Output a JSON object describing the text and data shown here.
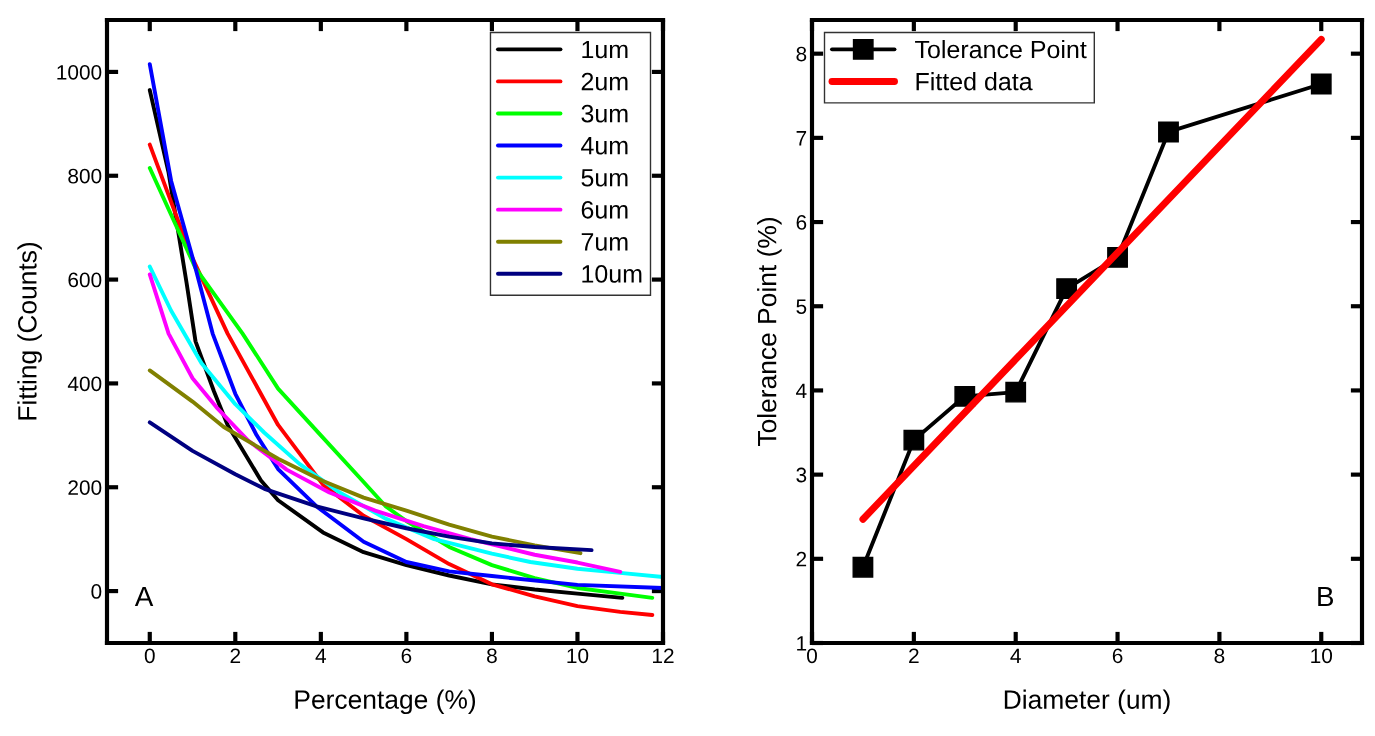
{
  "chart_data": [
    {
      "type": "line",
      "xlabel": "Percentage (%)",
      "ylabel": "Fitting (Counts)",
      "xlim": [
        -1,
        12
      ],
      "ylim": [
        -100,
        1100
      ],
      "xticks": [
        0,
        2,
        4,
        6,
        8,
        10,
        12
      ],
      "yticks": [
        0,
        200,
        400,
        600,
        800,
        1000
      ],
      "legend": "top right",
      "grid": false,
      "marker": "none",
      "line_style": "solid",
      "annotations": [
        "A"
      ],
      "series": [
        {
          "name": "1um",
          "color": "#000000",
          "x": [
            0,
            0.44,
            0.86,
            1.07,
            1.5,
            1.82,
            2.6,
            3,
            4.05,
            5,
            6,
            7,
            8,
            9,
            10,
            11.05
          ],
          "values": [
            965,
            806,
            594,
            481,
            385,
            320,
            213,
            175,
            113,
            75,
            50,
            30,
            13,
            3,
            -5,
            -13
          ]
        },
        {
          "name": "2um",
          "color": "#ff0000",
          "x": [
            0,
            0.95,
            1.82,
            3,
            4.05,
            5,
            6,
            7,
            8,
            9,
            10,
            11,
            11.75
          ],
          "values": [
            860,
            650,
            496,
            320,
            205,
            145,
            100,
            52,
            13,
            -10,
            -29,
            -40,
            -46
          ]
        },
        {
          "name": "3um",
          "color": "#00ff00",
          "x": [
            0,
            1.07,
            2.17,
            3,
            4,
            5,
            5.52,
            6,
            7,
            8,
            9,
            10,
            11,
            11.75
          ],
          "values": [
            815,
            622,
            496,
            390,
            300,
            210,
            163,
            135,
            85,
            50,
            25,
            6,
            -5,
            -13
          ]
        },
        {
          "name": "4um",
          "color": "#0000ff",
          "x": [
            0,
            0.5,
            1.07,
            1.47,
            2,
            2.5,
            3,
            3.9,
            5,
            6,
            7,
            8,
            10,
            12
          ],
          "values": [
            1015,
            790,
            622,
            496,
            380,
            300,
            235,
            163,
            95,
            56,
            38,
            29,
            12,
            6
          ]
        },
        {
          "name": "5um",
          "color": "#00ffff",
          "x": [
            0,
            0.5,
            1.21,
            2,
            2.68,
            3.5,
            4.4,
            5.5,
            6.65,
            8,
            8.9,
            10,
            11,
            12
          ],
          "values": [
            625,
            540,
            439,
            360,
            305,
            245,
            192,
            140,
            100,
            72,
            56,
            43,
            35,
            27
          ]
        },
        {
          "name": "6um",
          "color": "#ff00ff",
          "x": [
            0,
            0.44,
            1,
            1.56,
            2.3,
            3.2,
            4.2,
            5.27,
            6.4,
            7.5,
            9,
            10,
            11
          ],
          "values": [
            610,
            496,
            410,
            354,
            290,
            234,
            190,
            155,
            125,
            100,
            70,
            55,
            37
          ]
        },
        {
          "name": "7um",
          "color": "#808000",
          "x": [
            0,
            1,
            1.73,
            3,
            4.05,
            5,
            6,
            7,
            8,
            9,
            10.07
          ],
          "values": [
            425,
            365,
            316,
            255,
            212,
            180,
            155,
            128,
            105,
            88,
            73
          ]
        },
        {
          "name": "10um",
          "color": "#000080",
          "x": [
            0,
            1,
            2,
            2.68,
            3.9,
            5,
            6,
            7,
            8,
            9,
            10.33
          ],
          "values": [
            325,
            270,
            225,
            197,
            163,
            140,
            121,
            105,
            92,
            85,
            79
          ]
        }
      ]
    },
    {
      "type": "line",
      "xlabel": "Diameter (um)",
      "ylabel": "Tolerance Point (%)",
      "xlim": [
        0,
        10.8
      ],
      "ylim": [
        1,
        8.4
      ],
      "xticks": [
        0,
        2,
        4,
        6,
        8,
        10
      ],
      "yticks": [
        1,
        2,
        3,
        4,
        5,
        6,
        7,
        8
      ],
      "legend": "top left",
      "grid": false,
      "annotations": [
        "B"
      ],
      "series": [
        {
          "name": "Tolerance Point",
          "color": "#000000",
          "marker": "square",
          "line_style": "solid",
          "x": [
            1,
            2,
            3,
            4,
            5,
            6,
            7,
            10
          ],
          "values": [
            1.9,
            3.41,
            3.93,
            3.98,
            5.21,
            5.58,
            7.07,
            7.64
          ]
        },
        {
          "name": "Fitted data",
          "color": "#ff0000",
          "marker": "none",
          "line_style": "solid",
          "x": [
            1,
            10
          ],
          "values": [
            2.47,
            8.17
          ]
        }
      ]
    }
  ]
}
